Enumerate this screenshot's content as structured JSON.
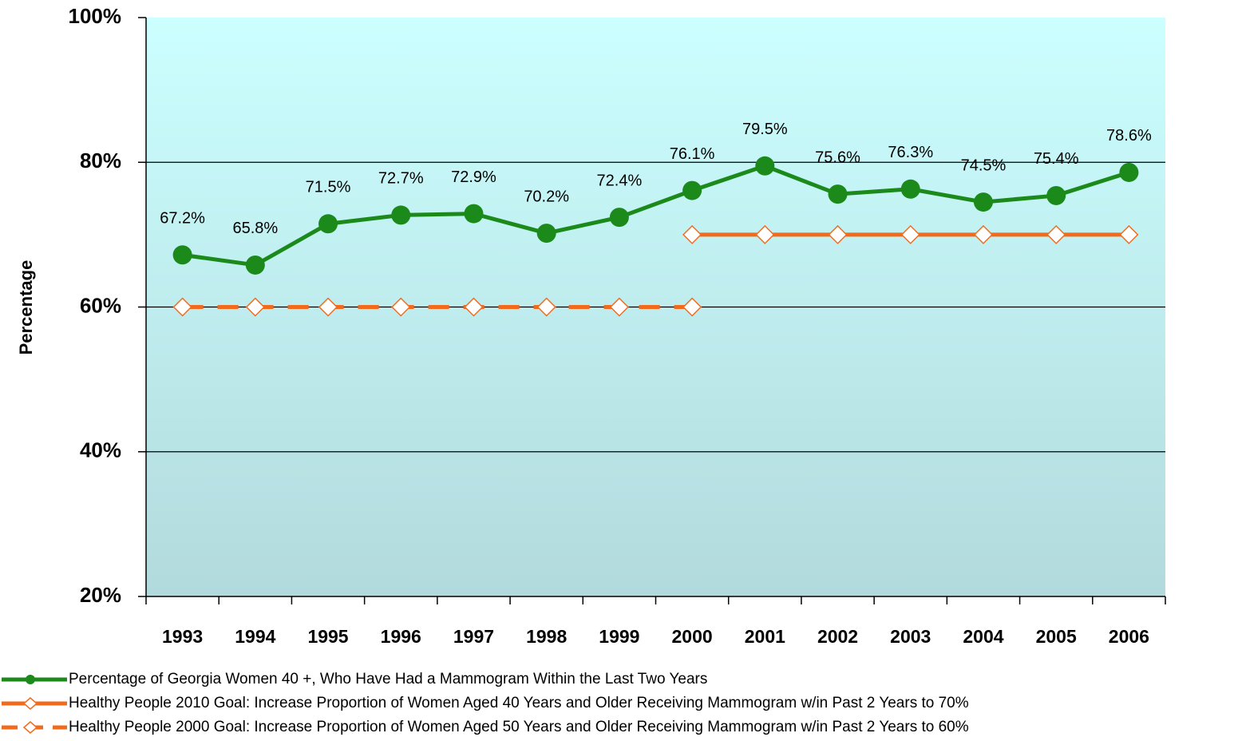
{
  "chart_data": {
    "type": "line",
    "ylabel": "Percentage",
    "categories": [
      "1993",
      "1994",
      "1995",
      "1996",
      "1997",
      "1998",
      "1999",
      "2000",
      "2001",
      "2002",
      "2003",
      "2004",
      "2005",
      "2006"
    ],
    "series": [
      {
        "name": "Percentage  of Georgia Women 40 +, Who Have Had a  Mammogram Within the Last Two Years",
        "color": "#1b8a1b",
        "marker": "circle",
        "dashed": false,
        "values": [
          67.2,
          65.8,
          71.5,
          72.7,
          72.9,
          70.2,
          72.4,
          76.1,
          79.5,
          75.6,
          76.3,
          74.5,
          75.4,
          78.6
        ],
        "value_labels": [
          "67.2%",
          "65.8%",
          "71.5%",
          "72.7%",
          "72.9%",
          "70.2%",
          "72.4%",
          "76.1%",
          "79.5%",
          "75.6%",
          "76.3%",
          "74.5%",
          "75.4%",
          "78.6%"
        ]
      },
      {
        "name": "Healthy People 2010 Goal:  Increase Proportion of Women Aged 40 Years and Older Receiving Mammogram w/in Past 2 Years to 70%",
        "color": "#f26b1d",
        "marker": "diamond",
        "dashed": false,
        "values": [
          null,
          null,
          null,
          null,
          null,
          null,
          null,
          70,
          70,
          70,
          70,
          70,
          70,
          70
        ]
      },
      {
        "name": "Healthy People 2000 Goal:  Increase Proportion of Women Aged 50 Years and Older Receiving Mammogram w/in Past 2 Years to 60%",
        "color": "#f26b1d",
        "marker": "diamond",
        "dashed": true,
        "values": [
          60,
          60,
          60,
          60,
          60,
          60,
          60,
          60,
          null,
          null,
          null,
          null,
          null,
          null
        ]
      }
    ],
    "ylim": [
      20,
      100
    ],
    "yticks": [
      {
        "value": 20,
        "label": "20%"
      },
      {
        "value": 40,
        "label": "40%"
      },
      {
        "value": 60,
        "label": "60%"
      },
      {
        "value": 80,
        "label": "80%"
      },
      {
        "value": 100,
        "label": "100%"
      }
    ],
    "grid": true
  }
}
